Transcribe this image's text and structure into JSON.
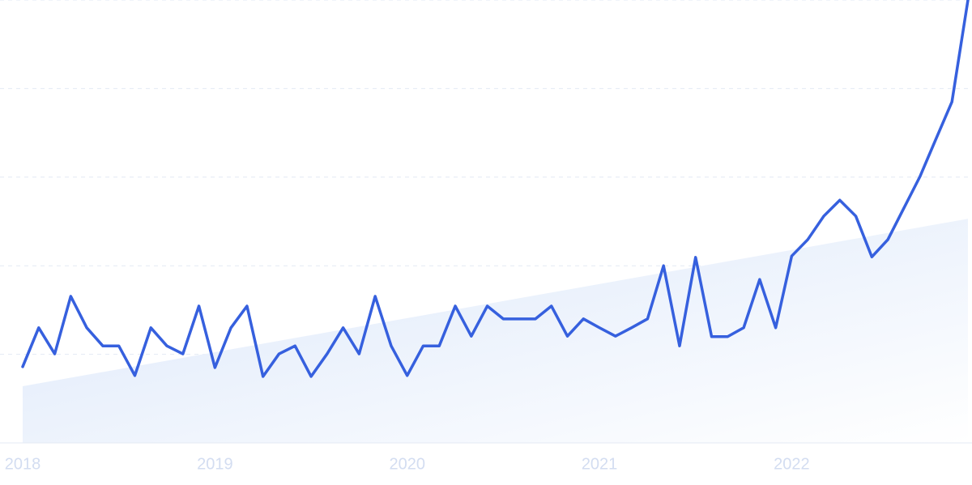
{
  "chart_data": {
    "type": "line",
    "categories": [
      "2018",
      null,
      null,
      null,
      null,
      null,
      null,
      null,
      null,
      null,
      null,
      null,
      "2019",
      null,
      null,
      null,
      null,
      null,
      null,
      null,
      null,
      null,
      null,
      null,
      "2020",
      null,
      null,
      null,
      null,
      null,
      null,
      null,
      null,
      null,
      null,
      null,
      "2021",
      null,
      null,
      null,
      null,
      null,
      null,
      null,
      null,
      null,
      null,
      null,
      "2022",
      null,
      null,
      null,
      null,
      null,
      null,
      null,
      null,
      null,
      null,
      null
    ],
    "series": [
      {
        "color": "#3660de",
        "values": [
          17.2,
          26,
          20.1,
          33.1,
          26,
          21.9,
          21.9,
          15.2,
          26,
          21.9,
          20.1,
          30.9,
          17,
          26,
          30.9,
          15,
          20.1,
          21.9,
          15,
          20.1,
          26,
          20.1,
          33.1,
          21.9,
          15.2,
          21.9,
          21.9,
          30.9,
          24.1,
          30.9,
          28,
          28,
          28,
          30.9,
          24.1,
          28,
          26,
          24.1,
          26,
          28,
          40,
          21.9,
          41.9,
          24,
          24,
          26,
          36.9,
          26,
          42.2,
          45.9,
          51.2,
          54.8,
          51.2,
          42,
          45.9,
          53,
          60.1,
          68.6,
          77,
          100
        ]
      }
    ],
    "trend": [
      12.8,
      50.6
    ],
    "ylim": [
      0,
      100
    ],
    "yticks": [
      20,
      40,
      60,
      80,
      100
    ],
    "grid": true
  }
}
